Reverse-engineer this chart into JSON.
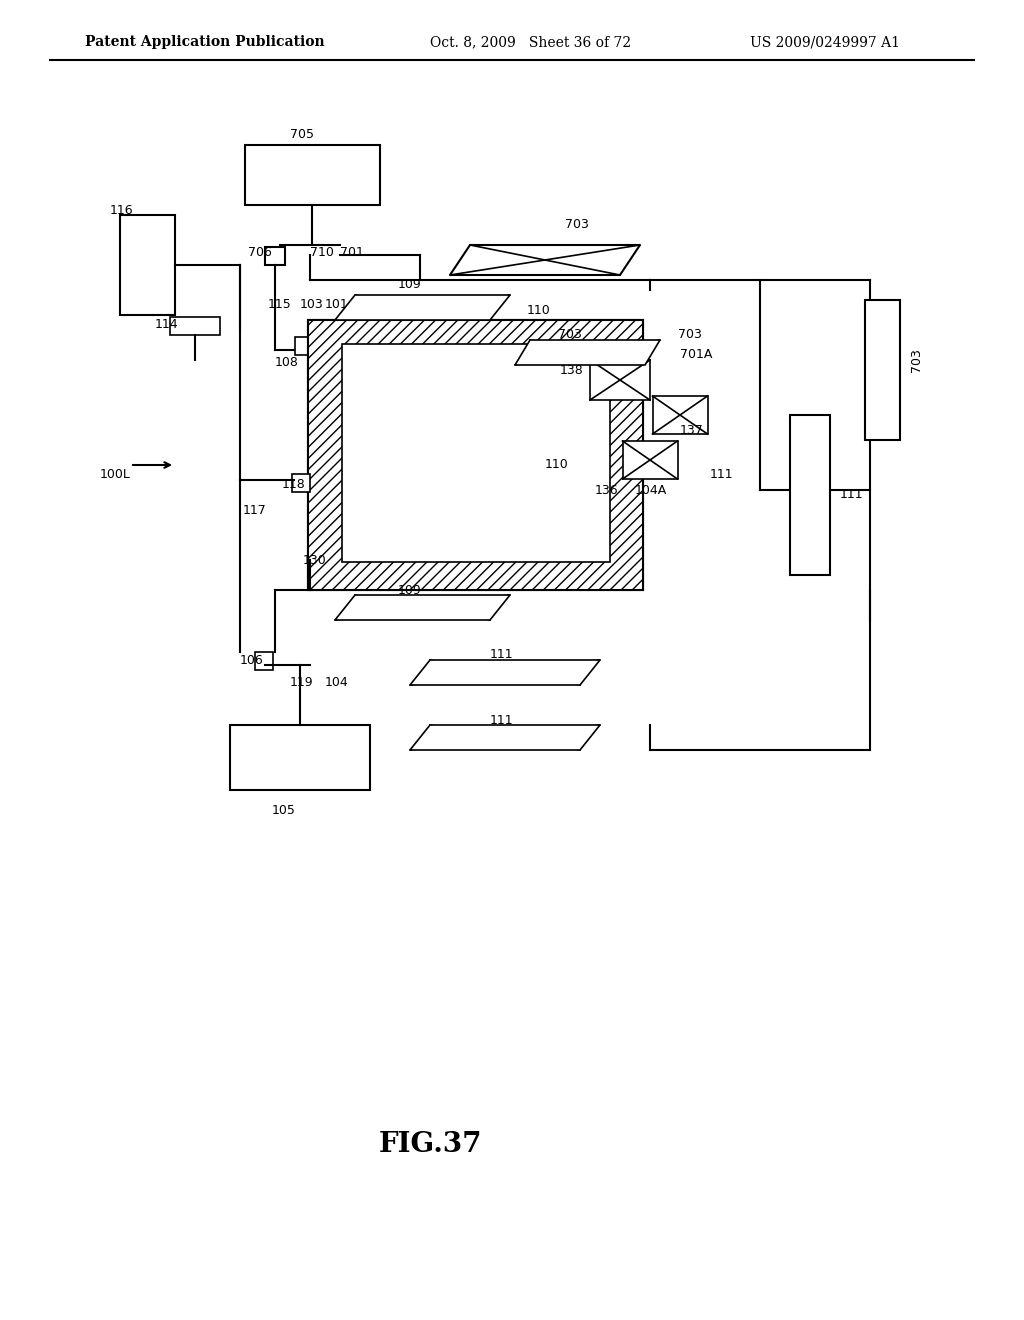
{
  "title": "FIG.37",
  "header_left": "Patent Application Publication",
  "header_mid": "Oct. 8, 2009   Sheet 36 of 72",
  "header_right": "US 2009/0249997 A1",
  "bg_color": "#ffffff",
  "line_color": "#000000",
  "hatch_color": "#000000",
  "label_fontsize": 9,
  "header_fontsize": 10,
  "title_fontsize": 20
}
